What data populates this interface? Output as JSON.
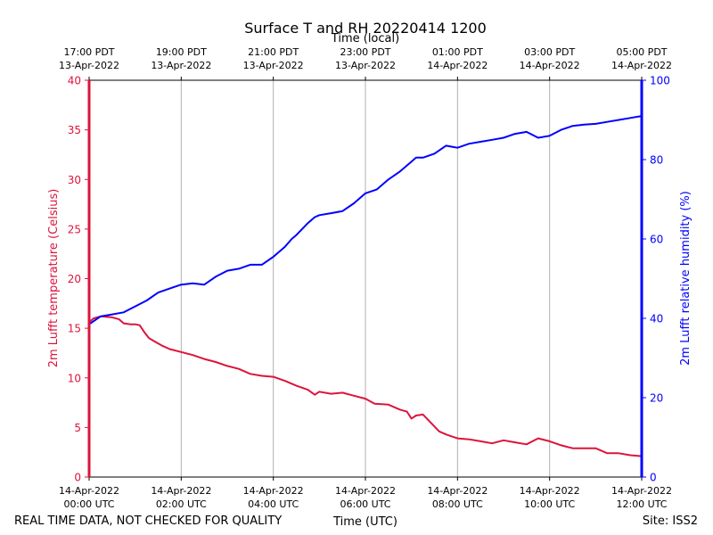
{
  "chart_data": {
    "type": "line",
    "title": "Surface T and RH 20220414 1200",
    "top_axis_label": "Time (local)",
    "xlabel": "Time (UTC)",
    "ylabel_left": "2m Lufft temperature (Celsius)",
    "ylabel_right": "2m Lufft relative humidity (%)",
    "footer_left": "REAL TIME DATA, NOT CHECKED FOR QUALITY",
    "footer_right": "Site: ISS2",
    "x_range_hours": [
      0,
      12
    ],
    "ylim_left": [
      0,
      40
    ],
    "ylim_right": [
      0,
      100
    ],
    "left_ticks": [
      "0",
      "5",
      "10",
      "15",
      "20",
      "25",
      "30",
      "35",
      "40"
    ],
    "right_ticks": [
      "0",
      "20",
      "40",
      "60",
      "80",
      "100"
    ],
    "utc_ticks": [
      {
        "hour": 0,
        "line1": "14-Apr-2022",
        "line2": "00:00 UTC"
      },
      {
        "hour": 2,
        "line1": "14-Apr-2022",
        "line2": "02:00 UTC"
      },
      {
        "hour": 4,
        "line1": "14-Apr-2022",
        "line2": "04:00 UTC"
      },
      {
        "hour": 6,
        "line1": "14-Apr-2022",
        "line2": "06:00 UTC"
      },
      {
        "hour": 8,
        "line1": "14-Apr-2022",
        "line2": "08:00 UTC"
      },
      {
        "hour": 10,
        "line1": "14-Apr-2022",
        "line2": "10:00 UTC"
      },
      {
        "hour": 12,
        "line1": "14-Apr-2022",
        "line2": "12:00 UTC"
      }
    ],
    "local_ticks": [
      {
        "hour": 0,
        "line1": "17:00 PDT",
        "line2": "13-Apr-2022"
      },
      {
        "hour": 2,
        "line1": "19:00 PDT",
        "line2": "13-Apr-2022"
      },
      {
        "hour": 4,
        "line1": "21:00 PDT",
        "line2": "13-Apr-2022"
      },
      {
        "hour": 6,
        "line1": "23:00 PDT",
        "line2": "13-Apr-2022"
      },
      {
        "hour": 8,
        "line1": "01:00 PDT",
        "line2": "14-Apr-2022"
      },
      {
        "hour": 10,
        "line1": "03:00 PDT",
        "line2": "14-Apr-2022"
      },
      {
        "hour": 12,
        "line1": "05:00 PDT",
        "line2": "14-Apr-2022"
      }
    ],
    "colors": {
      "temperature": "#dc143c",
      "humidity": "#0000ff",
      "grid": "#b0b0b0",
      "axis": "#000000"
    },
    "series": [
      {
        "name": "2m Lufft temperature (Celsius)",
        "axis": "left",
        "x_hours": [
          0,
          0.1,
          0.25,
          0.5,
          0.65,
          0.75,
          0.9,
          1.0,
          1.1,
          1.2,
          1.3,
          1.45,
          1.6,
          1.75,
          2.0,
          2.25,
          2.5,
          2.75,
          3.0,
          3.25,
          3.5,
          3.75,
          4.0,
          4.25,
          4.5,
          4.75,
          4.9,
          5.0,
          5.25,
          5.5,
          5.75,
          6.0,
          6.2,
          6.5,
          6.75,
          6.9,
          7.0,
          7.1,
          7.25,
          7.5,
          7.6,
          7.75,
          8.0,
          8.25,
          8.5,
          8.75,
          9.0,
          9.25,
          9.5,
          9.75,
          10.0,
          10.25,
          10.5,
          10.75,
          11.0,
          11.25,
          11.5,
          11.75,
          12.0
        ],
        "values": [
          15.6,
          16.0,
          16.2,
          16.1,
          15.9,
          15.5,
          15.4,
          15.4,
          15.3,
          14.6,
          14.0,
          13.6,
          13.2,
          12.9,
          12.6,
          12.3,
          11.9,
          11.6,
          11.2,
          10.9,
          10.4,
          10.2,
          10.1,
          9.7,
          9.2,
          8.8,
          8.3,
          8.6,
          8.4,
          8.5,
          8.2,
          7.9,
          7.4,
          7.3,
          6.8,
          6.6,
          5.9,
          6.2,
          6.3,
          5.1,
          4.6,
          4.3,
          3.9,
          3.8,
          3.6,
          3.4,
          3.7,
          3.5,
          3.3,
          3.9,
          3.6,
          3.2,
          2.9,
          2.9,
          2.9,
          2.4,
          2.4,
          2.2,
          2.1
        ]
      },
      {
        "name": "2m Lufft relative humidity (%)",
        "axis": "right",
        "x_hours": [
          0,
          0.25,
          0.5,
          0.75,
          1.0,
          1.25,
          1.5,
          1.75,
          2.0,
          2.25,
          2.5,
          2.75,
          3.0,
          3.25,
          3.5,
          3.75,
          4.0,
          4.25,
          4.4,
          4.5,
          4.75,
          4.9,
          5.0,
          5.25,
          5.5,
          5.75,
          6.0,
          6.25,
          6.5,
          6.75,
          7.0,
          7.1,
          7.25,
          7.5,
          7.75,
          8.0,
          8.25,
          8.5,
          8.75,
          9.0,
          9.25,
          9.5,
          9.75,
          10.0,
          10.25,
          10.5,
          10.75,
          11.0,
          11.25,
          11.5,
          11.75,
          12.0
        ],
        "values": [
          38.5,
          40.5,
          41.0,
          41.5,
          43.0,
          44.5,
          46.5,
          47.5,
          48.5,
          48.8,
          48.5,
          50.5,
          52.0,
          52.5,
          53.5,
          53.5,
          55.5,
          58.0,
          60.0,
          61.0,
          64.0,
          65.5,
          66.0,
          66.5,
          67.0,
          69.0,
          71.5,
          72.5,
          75.0,
          77.0,
          79.5,
          80.5,
          80.5,
          81.5,
          83.5,
          83.0,
          84.0,
          84.5,
          85.0,
          85.5,
          86.5,
          87.0,
          85.5,
          86.0,
          87.5,
          88.5,
          88.8,
          89.0,
          89.5,
          90.0,
          90.5,
          91.0
        ]
      }
    ]
  }
}
